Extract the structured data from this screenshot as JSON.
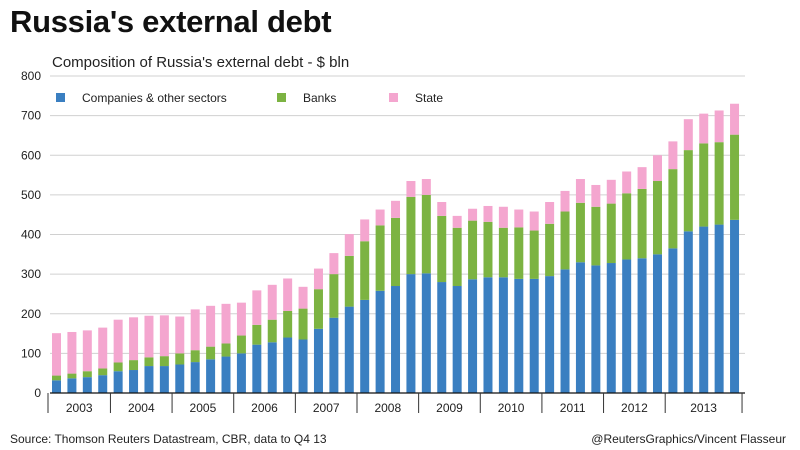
{
  "title": "Russia's external debt",
  "subtitle": "Composition of Russia's external debt - $ bln",
  "source": "Source: Thomson Reuters Datastream, CBR, data to Q4 13",
  "credit": "@ReutersGraphics/Vincent Flasseur",
  "colors": {
    "companies": "#3a7fc1",
    "banks": "#7cb342",
    "state": "#f4a6cf"
  },
  "chart_data": {
    "type": "bar",
    "stacked": true,
    "grid": true,
    "legend_position": "top-left",
    "ylim": [
      0,
      800
    ],
    "yticks": [
      "0",
      "100",
      "200",
      "300",
      "400",
      "500",
      "600",
      "700",
      "800"
    ],
    "xtick_labels": [
      "2003",
      "2004",
      "2005",
      "2006",
      "2007",
      "2008",
      "2009",
      "2010",
      "2011",
      "2012",
      "2013"
    ],
    "series": [
      {
        "name": "Companies & other sectors",
        "values": [
          32,
          37,
          40,
          45,
          55,
          58,
          68,
          68,
          72,
          78,
          85,
          92,
          100,
          122,
          128,
          140,
          135,
          162,
          190,
          218,
          235,
          258,
          270,
          300,
          302,
          280,
          270,
          287,
          292,
          292,
          288,
          288,
          295,
          312,
          330,
          322,
          328,
          337,
          340,
          350,
          365,
          408,
          420,
          425,
          437
        ]
      },
      {
        "name": "Banks",
        "values": [
          12,
          12,
          15,
          17,
          22,
          25,
          22,
          25,
          28,
          30,
          32,
          33,
          45,
          50,
          57,
          67,
          78,
          100,
          110,
          128,
          148,
          165,
          172,
          195,
          198,
          167,
          147,
          148,
          140,
          125,
          130,
          122,
          132,
          146,
          150,
          148,
          150,
          167,
          175,
          185,
          200,
          205,
          210,
          208,
          215
        ]
      },
      {
        "name": "State",
        "values": [
          107,
          105,
          103,
          103,
          108,
          108,
          105,
          103,
          93,
          103,
          103,
          100,
          83,
          87,
          88,
          82,
          55,
          52,
          53,
          55,
          55,
          40,
          43,
          40,
          40,
          35,
          30,
          30,
          40,
          53,
          45,
          48,
          55,
          52,
          60,
          55,
          60,
          55,
          55,
          65,
          70,
          78,
          75,
          80,
          78
        ]
      }
    ]
  }
}
